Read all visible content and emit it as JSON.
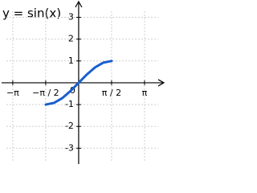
{
  "chart_data": {
    "type": "line",
    "title": "y = sin(x)",
    "x": [
      -1.5708,
      -1.1781,
      -0.7854,
      -0.3927,
      0,
      0.3927,
      0.7854,
      1.1781,
      1.5708
    ],
    "series": [
      {
        "color": "#1a5fcc",
        "values": [
          -1,
          -0.9239,
          -0.7071,
          -0.3827,
          0,
          0.3827,
          0.7071,
          0.9239,
          1
        ]
      }
    ],
    "xlim": [
      -3.75,
      4.1
    ],
    "ylim": [
      -3.8,
      3.5
    ],
    "xticks": [
      {
        "value": -3.14159,
        "label": "−π"
      },
      {
        "value": -1.5708,
        "label": "−π / 2"
      },
      {
        "value": 1.5708,
        "label": "π / 2"
      },
      {
        "value": 3.14159,
        "label": "π"
      }
    ],
    "yticks": [
      -3,
      -2,
      -1,
      0,
      1,
      2,
      3
    ],
    "grid": true
  }
}
